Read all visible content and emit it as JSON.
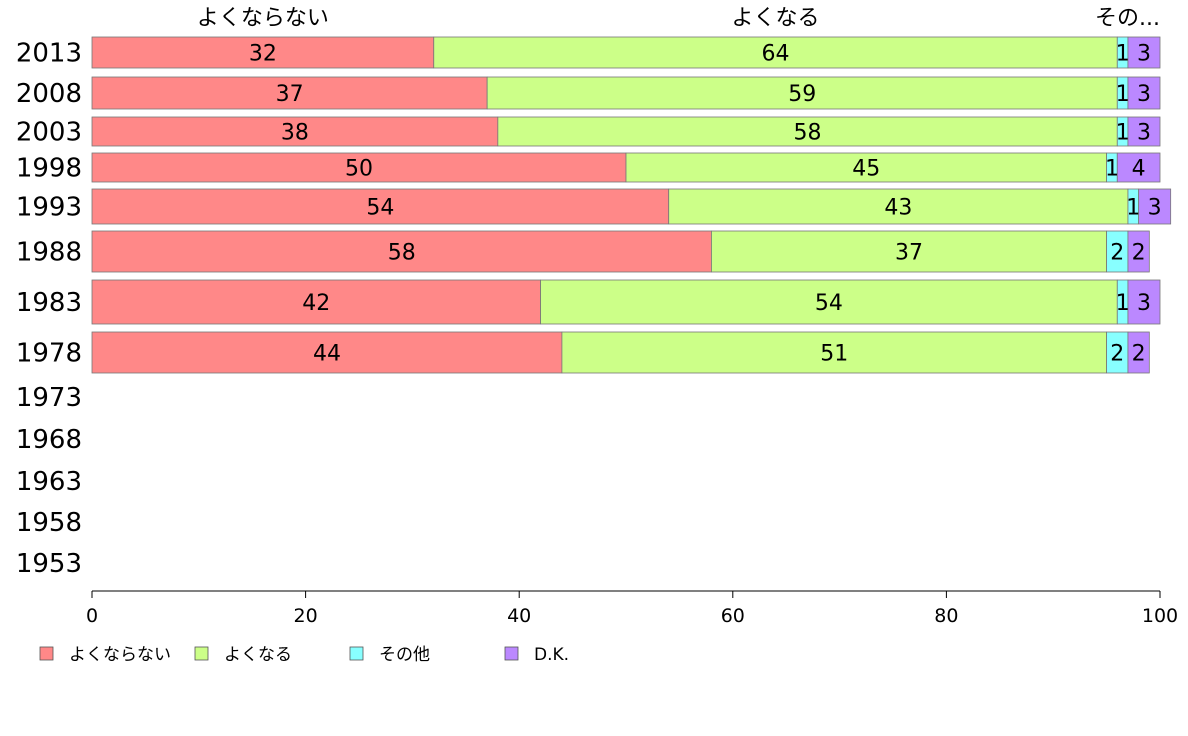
{
  "chart_data": {
    "type": "bar",
    "orientation": "horizontal",
    "stacked": true,
    "categories": [
      "2013",
      "2008",
      "2003",
      "1998",
      "1993",
      "1988",
      "1983",
      "1978",
      "1973",
      "1968",
      "1963",
      "1958",
      "1953"
    ],
    "series": [
      {
        "name": "よくならない",
        "color": "#ff8888",
        "values": [
          32,
          37,
          38,
          50,
          54,
          58,
          42,
          44,
          null,
          null,
          null,
          null,
          null
        ]
      },
      {
        "name": "よくなる",
        "color": "#ccff88",
        "values": [
          64,
          59,
          58,
          45,
          43,
          37,
          54,
          51,
          null,
          null,
          null,
          null,
          null
        ]
      },
      {
        "name": "その他",
        "color": "#88ffff",
        "values": [
          1,
          1,
          1,
          1,
          1,
          2,
          1,
          2,
          null,
          null,
          null,
          null,
          null
        ]
      },
      {
        "name": "D.K.",
        "color": "#bb88ff",
        "values": [
          3,
          3,
          3,
          4,
          3,
          2,
          3,
          2,
          null,
          null,
          null,
          null,
          null
        ]
      }
    ],
    "bar_value_labels": [
      [
        "32",
        "64",
        "1",
        "3"
      ],
      [
        "37",
        "59",
        "1",
        "3"
      ],
      [
        "38",
        "58",
        "1",
        "3"
      ],
      [
        "50",
        "45",
        "1",
        "4"
      ],
      [
        "54",
        "43",
        "1",
        "3"
      ],
      [
        "58",
        "37",
        "2",
        "2"
      ],
      [
        "42",
        "54",
        "1",
        "3"
      ],
      [
        "44",
        "51",
        "2",
        "2"
      ]
    ],
    "top_labels": [
      "よくならない",
      "よくなる",
      "その..."
    ],
    "xlim": [
      0,
      100
    ],
    "xticks": [
      "0",
      "20",
      "40",
      "60",
      "80",
      "100"
    ],
    "legend_position": "bottom",
    "grid": false
  }
}
